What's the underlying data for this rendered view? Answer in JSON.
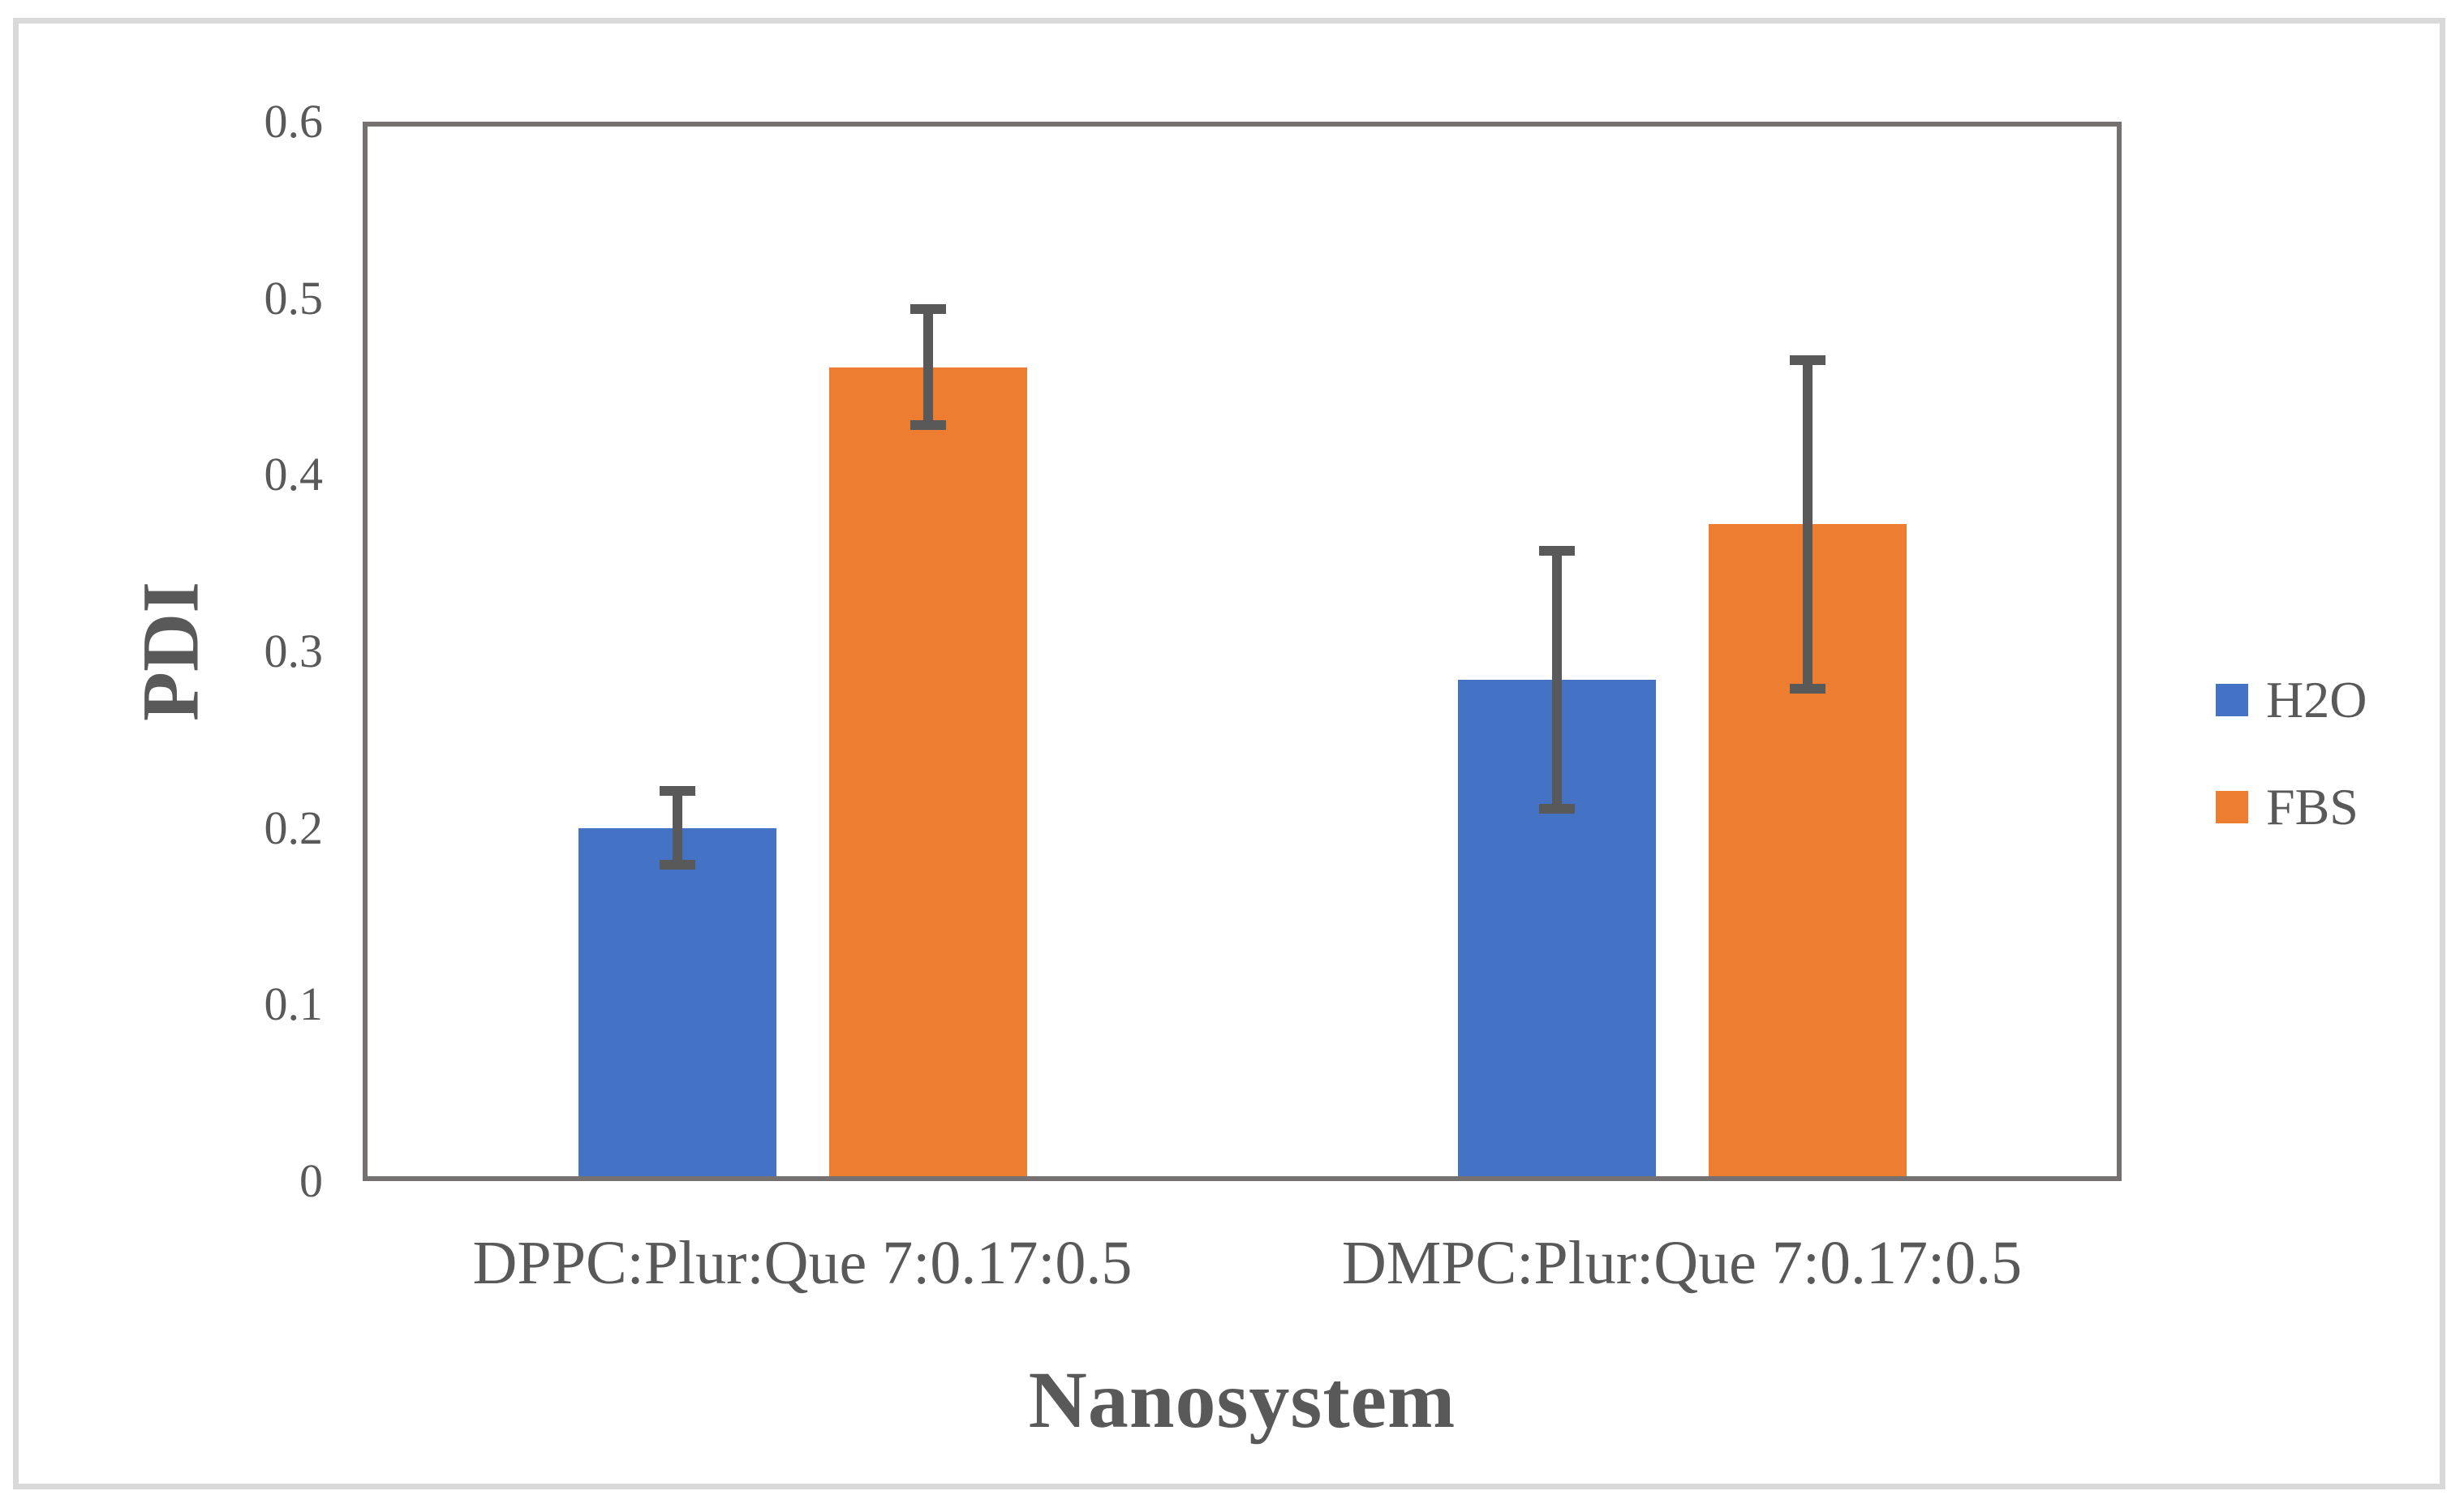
{
  "figure": {
    "background_color": "#ffffff",
    "outer_border_color": "#d9d9d9",
    "axis_frame_color": "#767171",
    "text_color": "#595959",
    "error_bar_color": "#595959"
  },
  "chart_data": {
    "type": "bar",
    "title": "",
    "xlabel": "Nanosystem",
    "ylabel": "PDI",
    "categories": [
      "DPPC:Plur:Que 7:0.17:0.5",
      "DMPC:Plur:Que 7:0.17:0.5"
    ],
    "series": [
      {
        "name": "H2O",
        "color": "#4472C4",
        "values": [
          0.2,
          0.284
        ],
        "errors": [
          0.021,
          0.073
        ]
      },
      {
        "name": "FBS",
        "color": "#ED7D31",
        "values": [
          0.461,
          0.372
        ],
        "errors": [
          0.033,
          0.093
        ]
      }
    ],
    "ylim": [
      0,
      0.6
    ],
    "yticks": [
      "0",
      "0.1",
      "0.2",
      "0.3",
      "0.4",
      "0.5",
      "0.6"
    ],
    "grid": false,
    "legend_position": "right",
    "error_bars": true
  }
}
